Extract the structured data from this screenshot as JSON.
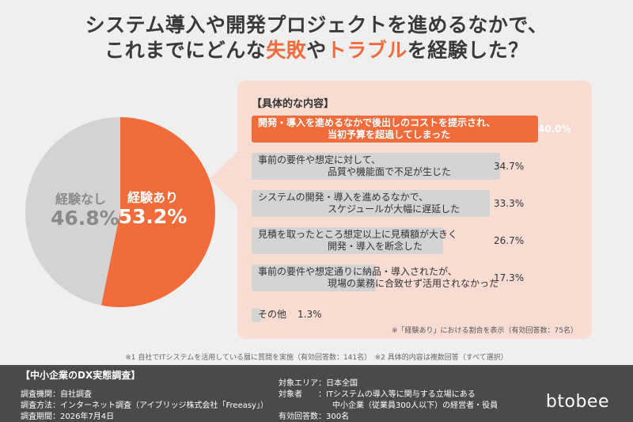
{
  "title": {
    "line1": "システム導入や開発プロジェクトを進めるなかで、",
    "line2_pre": "これまでにどんな",
    "line2_hl1": "失敗",
    "line2_mid": "や",
    "line2_hl2": "トラブル",
    "line2_post": "を経験した？"
  },
  "colors": {
    "accent": "#f26b3a",
    "gray": "#d3d3d3",
    "panel": "#f8dcd2",
    "footer": "#4a4a4a"
  },
  "chart_data": [
    {
      "type": "pie",
      "slices": [
        {
          "label": "経験あり",
          "value": 53.2,
          "display": "53.2%"
        },
        {
          "label": "経験なし",
          "value": 46.8,
          "display": "46.8%"
        }
      ]
    },
    {
      "type": "bar",
      "title": "【具体的な内容】",
      "categories": [
        "開発・導入を進めるなかで後出しのコストを提示され、当初予算を超過してしまった",
        "事前の要件や想定に対して、品質や機能面で不足が生じた",
        "システムの開発・導入を進めるなかで、スケジュールが大幅に遅延した",
        "見積を取ったところ想定以上に見積額が大きく開発・導入を断念した",
        "事前の要件や想定通りに納品・導入されたが、現場の業務に合致せず活用されなかった",
        "その他"
      ],
      "values": [
        40.0,
        34.7,
        33.3,
        26.7,
        17.3,
        1.3
      ],
      "display": [
        "40.0%",
        "34.7%",
        "33.3%",
        "26.7%",
        "17.3%",
        "1.3%"
      ],
      "note": "※「経験あり」における割合を表示（有効回答数：75名）"
    }
  ],
  "bars_text": [
    {
      "l1": "開発・導入を進めるなかで後出しのコストを提示され、",
      "l2": "当初予算を超過してしまった"
    },
    {
      "l1": "事前の要件や想定に対して、",
      "l2": "品質や機能面で不足が生じた"
    },
    {
      "l1": "システムの開発・導入を進めるなかで、",
      "l2": "スケジュールが大幅に遅延した"
    },
    {
      "l1": "見積を取ったところ想定以上に見積額が大きく",
      "l2": "開発・導入を断念した"
    },
    {
      "l1": "事前の要件や想定通りに納品・導入されたが、",
      "l2": "現場の業務に合致せず活用されなかった"
    },
    {
      "l1": "その他",
      "l2": ""
    }
  ],
  "footnote": "※1 自社でITシステムを活用している層に質問を実施（有効回答数：141名）　※2 具体的内容は複数回答（すべて選択）",
  "footer": {
    "title": "【中小企業のDX実態調査】",
    "org": "調査機関：自社調査",
    "method": "調査方法：インターネット調査（アイブリッジ株式会社「Freeasy」）",
    "period": "調査期間：2026年7月4日",
    "area": "対象エリア：日本全国",
    "target1": "対象者　　：ITシステムの導入等に関与する立場にある",
    "target2": "中小企業（従業員300人以下）の経営者・役員",
    "responses": "有効回答数：300名",
    "logo": "btobee"
  }
}
